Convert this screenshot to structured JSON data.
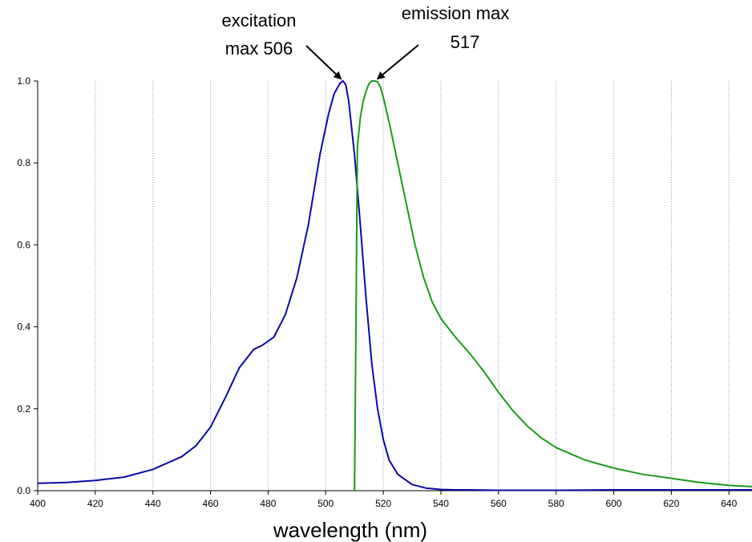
{
  "chart_data": {
    "type": "line",
    "xlabel": "wavelength (nm)",
    "ylabel": "",
    "xlim": [
      400,
      648
    ],
    "ylim": [
      0,
      1.0
    ],
    "x_ticks": [
      400,
      420,
      440,
      460,
      480,
      500,
      520,
      540,
      560,
      580,
      600,
      620,
      640
    ],
    "y_ticks": [
      0.0,
      0.2,
      0.4,
      0.6,
      0.8,
      1.0
    ],
    "y_tick_labels": [
      "0.0",
      "0.2",
      "0.4",
      "0.6",
      "0.8",
      "1.0"
    ],
    "grid": "vertical dotted lines at x ticks",
    "series": [
      {
        "color": "#0a0aa8",
        "x": [
          400,
          410,
          420,
          430,
          440,
          450,
          455,
          460,
          465,
          470,
          475,
          478,
          482,
          486,
          490,
          494,
          498,
          501,
          503,
          505,
          506,
          507,
          508,
          510,
          512,
          514,
          516,
          518,
          520,
          522,
          525,
          530,
          535,
          540,
          545,
          550,
          560,
          580,
          600,
          620,
          640,
          648
        ],
        "values": [
          0.018,
          0.02,
          0.025,
          0.033,
          0.052,
          0.083,
          0.11,
          0.155,
          0.225,
          0.3,
          0.345,
          0.355,
          0.375,
          0.43,
          0.52,
          0.65,
          0.82,
          0.92,
          0.97,
          0.995,
          1.0,
          0.99,
          0.95,
          0.82,
          0.65,
          0.47,
          0.31,
          0.2,
          0.125,
          0.075,
          0.04,
          0.015,
          0.006,
          0.003,
          0.002,
          0.002,
          0.001,
          0.001,
          0.002,
          0.002,
          0.002,
          0.002
        ]
      },
      {
        "color": "#1a9a1a",
        "x": [
          510,
          510.5,
          511,
          512,
          513,
          514,
          515,
          516,
          517,
          518,
          519,
          520,
          522,
          525,
          528,
          531,
          534,
          537,
          540,
          545,
          550,
          555,
          560,
          565,
          570,
          575,
          580,
          590,
          600,
          610,
          620,
          630,
          640,
          648
        ],
        "values": [
          0.0,
          0.4,
          0.84,
          0.91,
          0.95,
          0.975,
          0.993,
          1.0,
          1.0,
          0.998,
          0.985,
          0.96,
          0.9,
          0.8,
          0.7,
          0.6,
          0.52,
          0.46,
          0.42,
          0.375,
          0.335,
          0.29,
          0.24,
          0.195,
          0.158,
          0.128,
          0.105,
          0.075,
          0.055,
          0.04,
          0.03,
          0.02,
          0.013,
          0.01
        ]
      }
    ],
    "annotations": [
      {
        "lines": [
          "excitation",
          "max 506"
        ],
        "x": 506,
        "y": 1.0
      },
      {
        "lines": [
          "emission max",
          "517"
        ],
        "x": 517,
        "y": 1.0
      }
    ]
  }
}
